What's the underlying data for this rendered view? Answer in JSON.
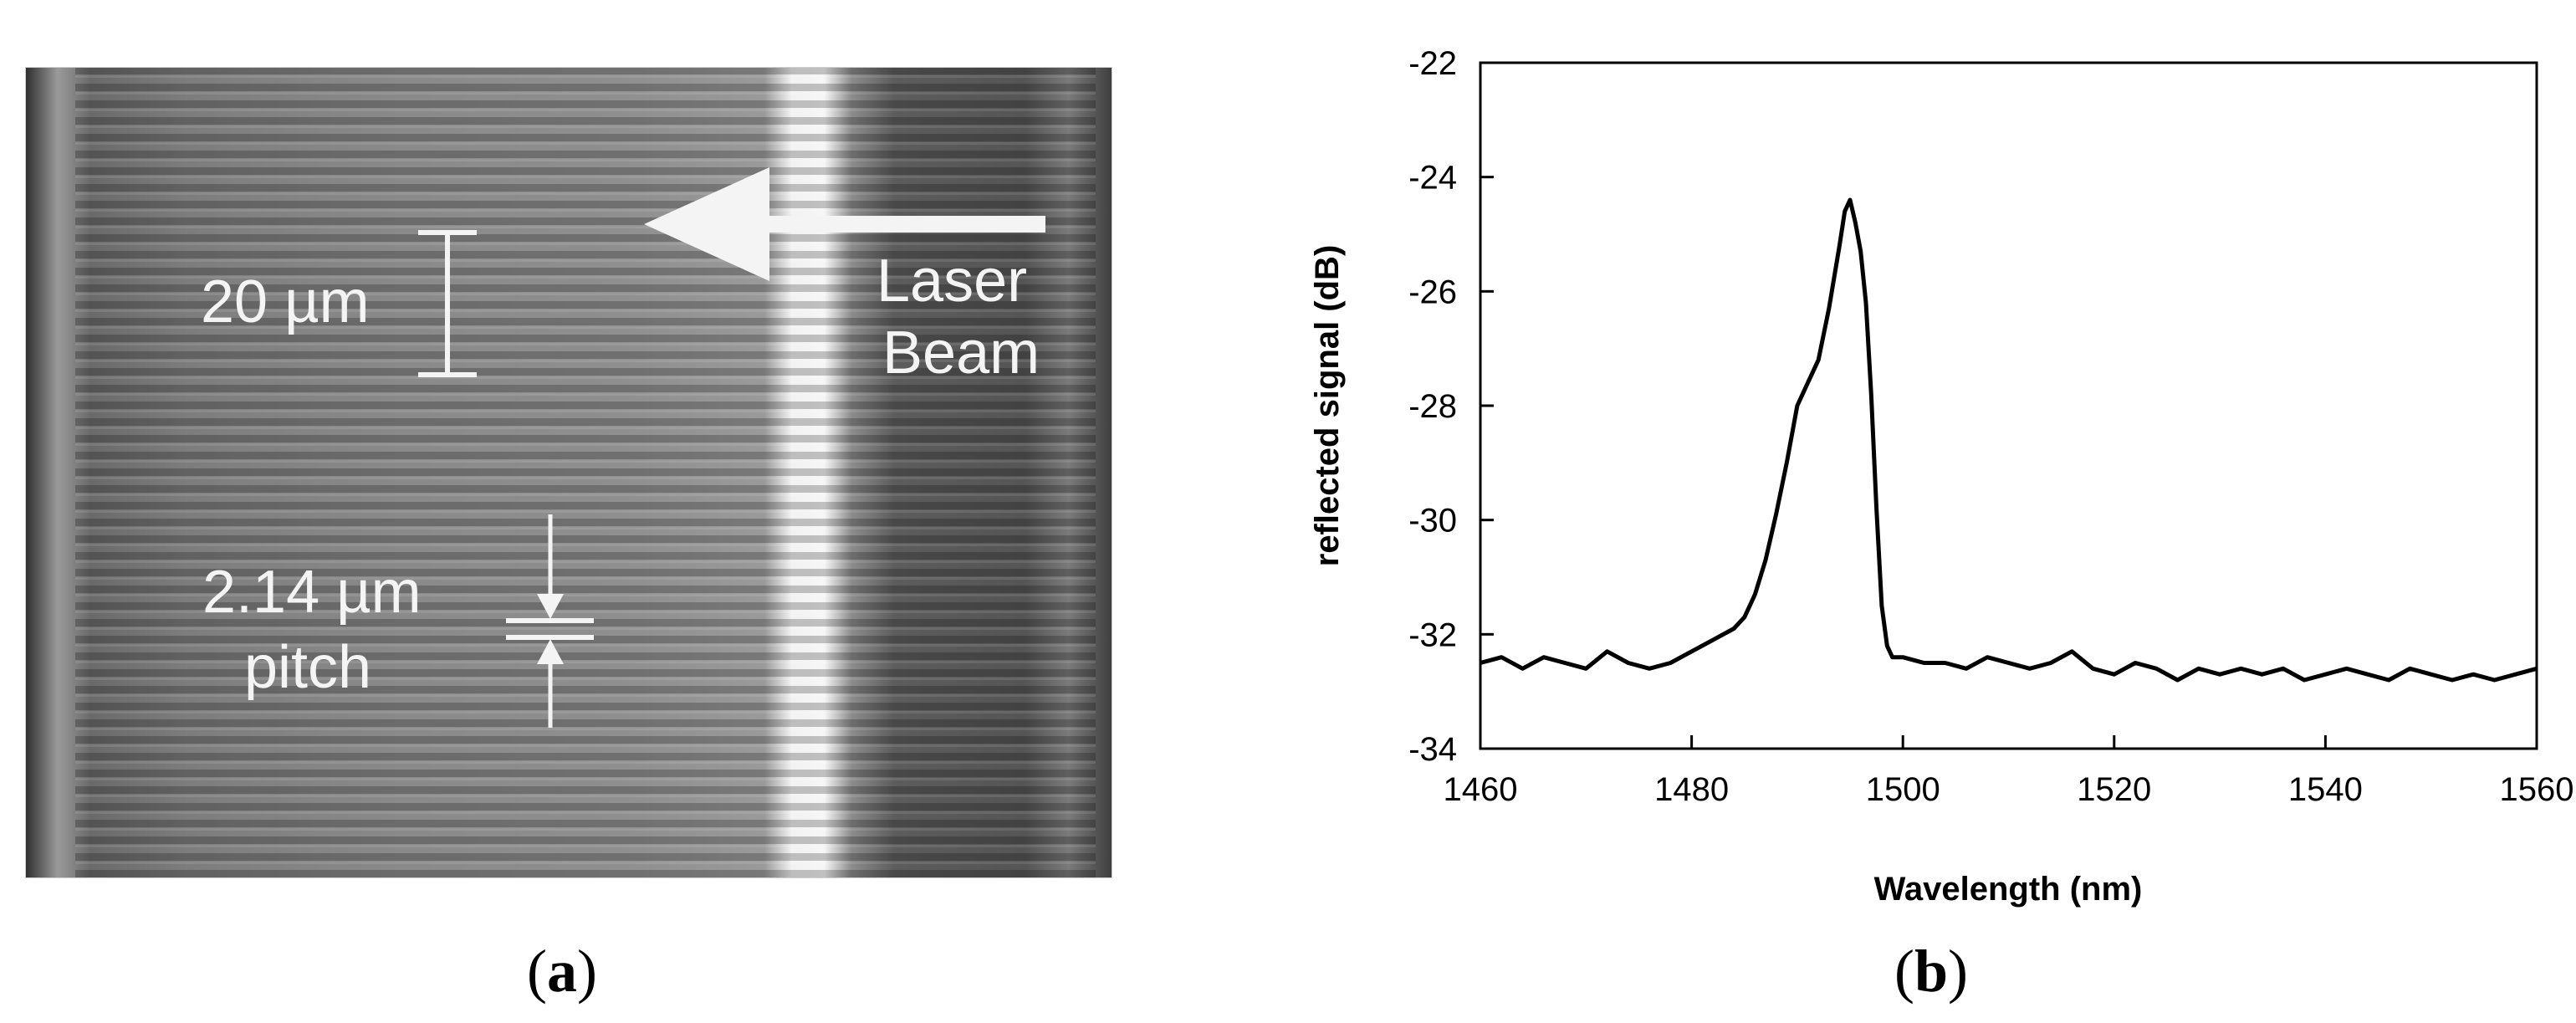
{
  "panel_a": {
    "label_left": "(",
    "label_letter": "a",
    "label_right": ")",
    "scale_bar": "20 µm",
    "arrow_label_1": "Laser",
    "arrow_label_2": "Beam",
    "pitch_value": "2.14 µm",
    "pitch_word": "pitch"
  },
  "panel_b": {
    "label_left": "(",
    "label_letter": "b",
    "label_right": ")"
  },
  "chart_data": {
    "type": "line",
    "title": "",
    "xlabel": "Wavelength (nm)",
    "ylabel": "reflected signal (dB)",
    "xlim": [
      1460,
      1560
    ],
    "ylim": [
      -34,
      -22
    ],
    "xticks": [
      1460,
      1480,
      1500,
      1520,
      1540,
      1560
    ],
    "yticks": [
      -22,
      -24,
      -26,
      -28,
      -30,
      -32,
      -34
    ],
    "grid": false,
    "legend": "none",
    "line_color": "#000000",
    "series": [
      {
        "x": [
          1460,
          1462,
          1464,
          1466,
          1468,
          1470,
          1472,
          1474,
          1476,
          1478,
          1480,
          1482,
          1484,
          1485,
          1486,
          1487,
          1488,
          1489,
          1490,
          1491,
          1492,
          1493,
          1494,
          1494.5,
          1495,
          1495.5,
          1496,
          1496.5,
          1497,
          1497.5,
          1498,
          1498.5,
          1499,
          1500,
          1502,
          1504,
          1506,
          1508,
          1510,
          1512,
          1514,
          1516,
          1518,
          1520,
          1522,
          1524,
          1526,
          1528,
          1530,
          1532,
          1534,
          1536,
          1538,
          1540,
          1542,
          1544,
          1546,
          1548,
          1550,
          1552,
          1554,
          1556,
          1558,
          1560
        ],
        "y": [
          -32.5,
          -32.4,
          -32.6,
          -32.4,
          -32.5,
          -32.6,
          -32.3,
          -32.5,
          -32.6,
          -32.5,
          -32.3,
          -32.1,
          -31.9,
          -31.7,
          -31.3,
          -30.7,
          -29.9,
          -29.0,
          -28.0,
          -27.6,
          -27.2,
          -26.3,
          -25.2,
          -24.6,
          -24.4,
          -24.8,
          -25.3,
          -26.2,
          -27.8,
          -29.8,
          -31.5,
          -32.2,
          -32.4,
          -32.4,
          -32.5,
          -32.5,
          -32.6,
          -32.4,
          -32.5,
          -32.6,
          -32.5,
          -32.3,
          -32.6,
          -32.7,
          -32.5,
          -32.6,
          -32.8,
          -32.6,
          -32.7,
          -32.6,
          -32.7,
          -32.6,
          -32.8,
          -32.7,
          -32.6,
          -32.7,
          -32.8,
          -32.6,
          -32.7,
          -32.8,
          -32.7,
          -32.8,
          -32.7,
          -32.6
        ]
      }
    ]
  }
}
